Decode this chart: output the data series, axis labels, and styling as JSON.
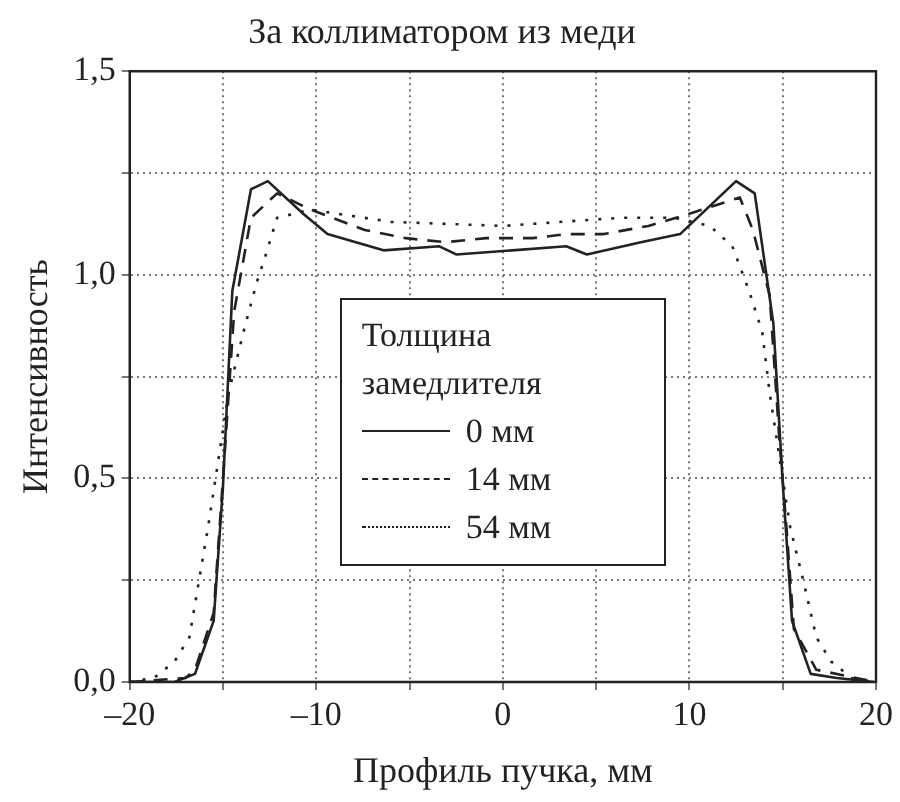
{
  "chart_data": {
    "type": "line",
    "title": "За коллиматором из меди",
    "xlabel": "Профиль пучка, мм",
    "ylabel": "Интенсивность",
    "legend_title": "Толщина замедлителя",
    "xlim": [
      -20,
      20
    ],
    "xticks": [
      {
        "value": -20,
        "label": "–20"
      },
      {
        "value": -15,
        "label": null
      },
      {
        "value": -10,
        "label": "–10"
      },
      {
        "value": -5,
        "label": null
      },
      0,
      {
        "value": 5,
        "label": null
      },
      10,
      {
        "value": 15,
        "label": null
      },
      20
    ],
    "ylim": [
      0,
      1.5
    ],
    "yticks": [
      {
        "value": 0,
        "label": "0,0"
      },
      {
        "value": 0.25,
        "label": null
      },
      {
        "value": 0.5,
        "label": "0,5"
      },
      {
        "value": 0.75,
        "label": null
      },
      {
        "value": 1,
        "label": "1,0"
      },
      {
        "value": 1.25,
        "label": null
      },
      {
        "value": 1.5,
        "label": "1,5"
      }
    ],
    "grid": true,
    "legend": "center",
    "marker": "none",
    "series": [
      {
        "name": "0 мм",
        "color": "#222222",
        "line_style": "solid",
        "x": [
          -20,
          -17.6,
          -16.5,
          -15.5,
          -15,
          -14.5,
          -13.5,
          -12.6,
          -10.7,
          -9.4,
          -6.4,
          -3.4,
          -2.5,
          0.5,
          3.4,
          4.5,
          7.4,
          9.5,
          12.5,
          13.5,
          14.5,
          15,
          15.5,
          16.5,
          17.9,
          19.9
        ],
        "values": [
          0,
          0,
          0.02,
          0.15,
          0.48,
          0.96,
          1.21,
          1.23,
          1.15,
          1.1,
          1.06,
          1.07,
          1.05,
          1.06,
          1.07,
          1.05,
          1.08,
          1.1,
          1.23,
          1.2,
          0.88,
          0.49,
          0.15,
          0.02,
          0.01,
          0
        ]
      },
      {
        "name": "14 мм",
        "color": "#222222",
        "line_style": "dashed",
        "x": [
          -20,
          -17,
          -16.5,
          -15.5,
          -15,
          -14.4,
          -13.5,
          -12.1,
          -10.3,
          -7.4,
          -5.2,
          -3.1,
          -0.9,
          1.6,
          3.4,
          4.5,
          5.4,
          7.8,
          10,
          12.7,
          13.4,
          14.3,
          14.8,
          15.2,
          15.6,
          16.8,
          20
        ],
        "values": [
          0,
          0.01,
          0.03,
          0.17,
          0.5,
          0.91,
          1.14,
          1.2,
          1.16,
          1.11,
          1.09,
          1.08,
          1.09,
          1.09,
          1.1,
          1.1,
          1.1,
          1.12,
          1.15,
          1.19,
          1.11,
          0.95,
          0.61,
          0.38,
          0.13,
          0.03,
          0
        ]
      },
      {
        "name": "54 мм",
        "color": "#222222",
        "line_style": "dotted",
        "x": [
          -20,
          -18.7,
          -17.6,
          -16.8,
          -15.8,
          -14.7,
          -13.9,
          -13.2,
          -12.7,
          -12.1,
          -10.3,
          -6,
          0,
          6.3,
          9.2,
          11.1,
          12.3,
          13.2,
          13.9,
          14.3,
          15.4,
          16.1,
          16.8,
          17.6,
          18.7,
          20
        ],
        "values": [
          0,
          0.01,
          0.05,
          0.11,
          0.38,
          0.71,
          0.86,
          0.98,
          1.05,
          1.14,
          1.16,
          1.13,
          1.12,
          1.14,
          1.14,
          1.12,
          1.07,
          0.96,
          0.86,
          0.71,
          0.38,
          0.25,
          0.11,
          0.05,
          0.01,
          0
        ]
      }
    ]
  }
}
